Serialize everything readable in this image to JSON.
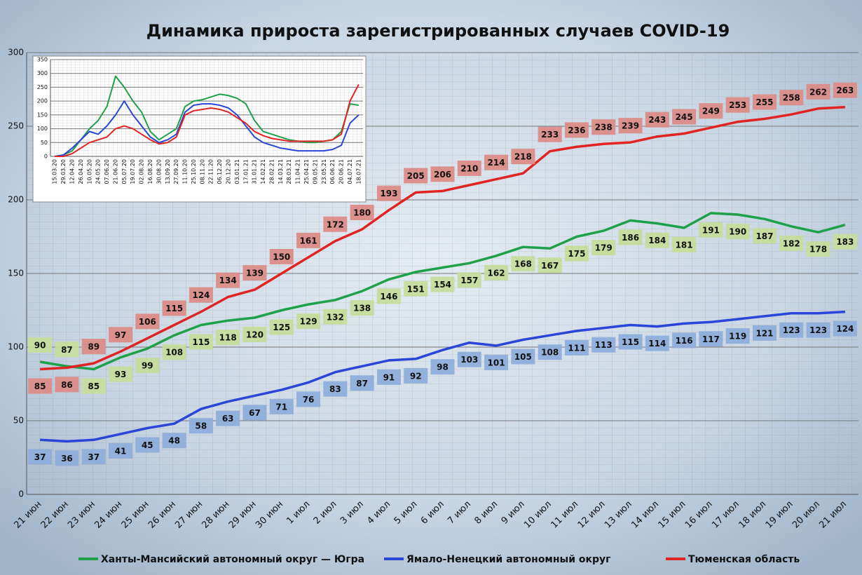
{
  "chart_data": [
    {
      "type": "line",
      "title": "Динамика прироста зарегистрированных случаев COVID-19",
      "categories": [
        "21 июн",
        "22 июн",
        "23 июн",
        "24 июн",
        "25 июн",
        "26 июн",
        "27 июн",
        "28 июн",
        "29 июн",
        "30 июн",
        "1 июл",
        "2 июл",
        "3 июл",
        "4 июл",
        "5 июл",
        "6 июл",
        "7 июл",
        "8 июл",
        "9 июл",
        "10 июл",
        "11 июл",
        "12 июл",
        "13 июл",
        "14 июл",
        "15 июл",
        "16 июл",
        "17 июл",
        "18 июл",
        "19 июл",
        "20 июл",
        "21 июл"
      ],
      "series": [
        {
          "name": "Ханты-Мансийский автономный округ — Югра",
          "color": "#1ea14a",
          "label_color": "#c6dc9c",
          "values": [
            90,
            87,
            85,
            93,
            99,
            108,
            115,
            118,
            120,
            125,
            129,
            132,
            138,
            146,
            151,
            154,
            157,
            162,
            168,
            167,
            175,
            179,
            186,
            184,
            181,
            191,
            190,
            187,
            182,
            178,
            183
          ]
        },
        {
          "name": "Ямало-Ненецкий автономный округ",
          "color": "#2a46d8",
          "label_color": "#8eaedb",
          "values": [
            37,
            36,
            37,
            41,
            45,
            48,
            58,
            63,
            67,
            71,
            76,
            83,
            87,
            91,
            92,
            98,
            103,
            101,
            105,
            108,
            111,
            113,
            115,
            114,
            116,
            117,
            119,
            121,
            123,
            123,
            124
          ]
        },
        {
          "name": "Тюменская область",
          "color": "#e02424",
          "label_color": "#db8c88",
          "values": [
            85,
            86,
            89,
            97,
            106,
            115,
            124,
            134,
            139,
            150,
            161,
            172,
            180,
            193,
            205,
            206,
            210,
            214,
            218,
            233,
            236,
            238,
            239,
            243,
            245,
            249,
            253,
            255,
            258,
            262,
            263
          ]
        }
      ],
      "ylim": [
        0,
        300
      ],
      "yticks": [
        0,
        50,
        100,
        150,
        200,
        250,
        300
      ],
      "grid": true
    },
    {
      "type": "line",
      "categories": [
        "15.03.20",
        "29.03.20",
        "12.04.20",
        "26.04.20",
        "10.05.20",
        "24.05.20",
        "07.06.20",
        "21.06.20",
        "05.07.20",
        "19.07.20",
        "02.08.20",
        "16.08.20",
        "30.08.20",
        "13.09.20",
        "27.09.20",
        "11.10.20",
        "25.10.20",
        "08.11.20",
        "22.11.20",
        "06.12.20",
        "20.12.20",
        "03.01.21",
        "17.01.21",
        "31.01.21",
        "14.02.21",
        "28.02.21",
        "14.03.21",
        "28.03.21",
        "11.04.21",
        "25.04.21",
        "09.05.21",
        "23.05.21",
        "06.06.21",
        "20.06.21",
        "04.07.21",
        "18.07.21"
      ],
      "series": [
        {
          "color": "#1ea14a",
          "values": [
            0,
            5,
            20,
            60,
            100,
            130,
            180,
            290,
            250,
            200,
            160,
            90,
            60,
            80,
            100,
            180,
            200,
            205,
            215,
            225,
            220,
            210,
            190,
            130,
            90,
            80,
            70,
            60,
            55,
            50,
            50,
            55,
            60,
            90,
            190,
            185
          ]
        },
        {
          "color": "#2a46d8",
          "values": [
            0,
            5,
            30,
            60,
            90,
            80,
            110,
            150,
            200,
            150,
            110,
            70,
            50,
            60,
            80,
            160,
            185,
            190,
            190,
            185,
            175,
            150,
            110,
            70,
            50,
            40,
            30,
            25,
            20,
            20,
            20,
            20,
            25,
            40,
            120,
            150
          ]
        },
        {
          "color": "#e02424",
          "values": [
            0,
            0,
            10,
            30,
            50,
            60,
            70,
            100,
            110,
            100,
            80,
            60,
            45,
            50,
            70,
            150,
            165,
            170,
            175,
            170,
            160,
            140,
            120,
            90,
            75,
            65,
            60,
            55,
            55,
            55,
            55,
            55,
            60,
            80,
            200,
            260
          ]
        }
      ],
      "ylim": [
        0,
        350
      ],
      "yticks": [
        0,
        50,
        100,
        150,
        200,
        250,
        300,
        350
      ],
      "grid": true
    }
  ]
}
